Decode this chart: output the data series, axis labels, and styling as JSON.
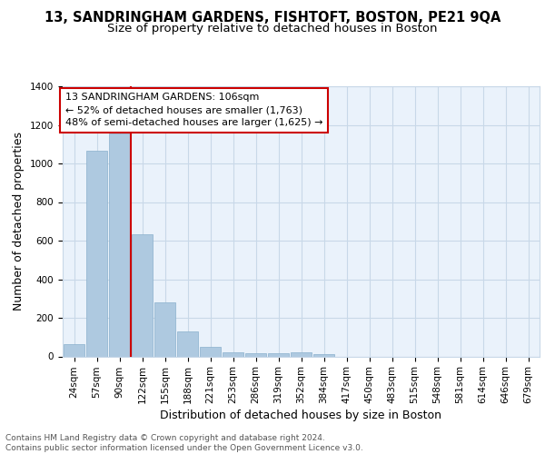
{
  "title1": "13, SANDRINGHAM GARDENS, FISHTOFT, BOSTON, PE21 9QA",
  "title2": "Size of property relative to detached houses in Boston",
  "xlabel": "Distribution of detached houses by size in Boston",
  "ylabel": "Number of detached properties",
  "categories": [
    "24sqm",
    "57sqm",
    "90sqm",
    "122sqm",
    "155sqm",
    "188sqm",
    "221sqm",
    "253sqm",
    "286sqm",
    "319sqm",
    "352sqm",
    "384sqm",
    "417sqm",
    "450sqm",
    "483sqm",
    "515sqm",
    "548sqm",
    "581sqm",
    "614sqm",
    "646sqm",
    "679sqm"
  ],
  "values": [
    65,
    1065,
    1155,
    635,
    280,
    130,
    50,
    20,
    15,
    15,
    20,
    10,
    0,
    0,
    0,
    0,
    0,
    0,
    0,
    0,
    0
  ],
  "bar_color": "#aec9e0",
  "bar_edge_color": "#8ab0cc",
  "annotation_line": "13 SANDRINGHAM GARDENS: 106sqm",
  "annotation_smaller": "← 52% of detached houses are smaller (1,763)",
  "annotation_larger": "48% of semi-detached houses are larger (1,625) →",
  "annotation_box_color": "#ffffff",
  "annotation_box_edge": "#cc0000",
  "vline_color": "#cc0000",
  "vline_x": 2.5,
  "ylim": [
    0,
    1400
  ],
  "yticks": [
    0,
    200,
    400,
    600,
    800,
    1000,
    1200,
    1400
  ],
  "grid_color": "#c8d8e8",
  "bg_color": "#eaf2fb",
  "footer": "Contains HM Land Registry data © Crown copyright and database right 2024.\nContains public sector information licensed under the Open Government Licence v3.0.",
  "title1_fontsize": 10.5,
  "title2_fontsize": 9.5,
  "xlabel_fontsize": 9,
  "ylabel_fontsize": 9,
  "tick_fontsize": 7.5,
  "annotation_fontsize": 8,
  "footer_fontsize": 6.5
}
